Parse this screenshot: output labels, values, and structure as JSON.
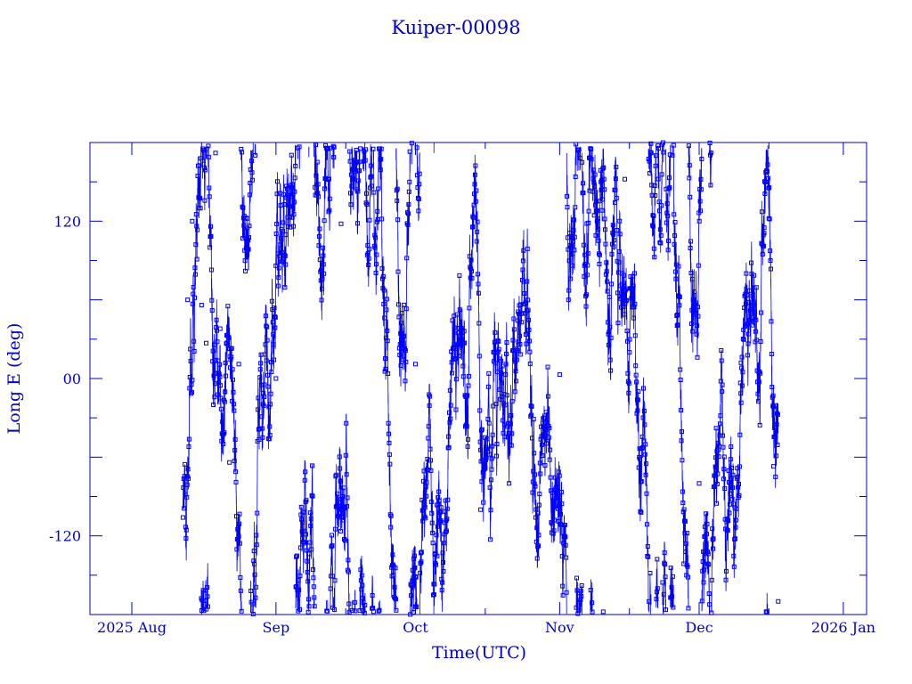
{
  "chart_data": {
    "type": "scatter",
    "title": "Kuiper-00098",
    "xlabel": "Time(UTC)",
    "ylabel": "Long E (deg)",
    "xlim": [
      "2025-07-23",
      "2026-01-06"
    ],
    "ylim": [
      -180,
      180
    ],
    "x_tick_labels": [
      {
        "date": "2025-08-01",
        "label": "2025 Aug"
      },
      {
        "date": "2025-09-01",
        "label": "Sep"
      },
      {
        "date": "2025-10-01",
        "label": "Oct"
      },
      {
        "date": "2025-11-01",
        "label": "Nov"
      },
      {
        "date": "2025-12-01",
        "label": "Dec"
      },
      {
        "date": "2026-01-01",
        "label": "2026 Jan"
      }
    ],
    "y_tick_labels": [
      {
        "value": 120,
        "label": "120"
      },
      {
        "value": 0,
        "label": "00"
      },
      {
        "value": -120,
        "label": "-120"
      }
    ],
    "series_color": "#0000ff",
    "axis_color": "#0000cc",
    "marker": "square",
    "line": "connected, wrapping at ±180",
    "time_range": [
      "2025-08-12",
      "2025-12-18"
    ],
    "sample_points": [
      {
        "x": "2025-08-12",
        "y": -106
      },
      {
        "x": "2025-08-13",
        "y": 60
      },
      {
        "x": "2025-08-14",
        "y": 120
      },
      {
        "x": "2025-08-16",
        "y": 56
      },
      {
        "x": "2025-08-17",
        "y": 27
      },
      {
        "x": "2025-08-19",
        "y": 172
      },
      {
        "x": "2025-08-20",
        "y": 38
      },
      {
        "x": "2025-08-22",
        "y": -64
      },
      {
        "x": "2025-08-24",
        "y": 11
      },
      {
        "x": "2025-09-01",
        "y": 0
      },
      {
        "x": "2025-09-15",
        "y": 118
      },
      {
        "x": "2025-10-01",
        "y": 11
      },
      {
        "x": "2025-10-15",
        "y": -100
      },
      {
        "x": "2025-11-01",
        "y": 3
      },
      {
        "x": "2025-11-15",
        "y": 152
      },
      {
        "x": "2025-12-01",
        "y": -80
      },
      {
        "x": "2025-12-10",
        "y": 12
      },
      {
        "x": "2025-12-15",
        "y": 115
      },
      {
        "x": "2025-12-17",
        "y": -67
      },
      {
        "x": "2025-12-18",
        "y": -170
      }
    ]
  }
}
